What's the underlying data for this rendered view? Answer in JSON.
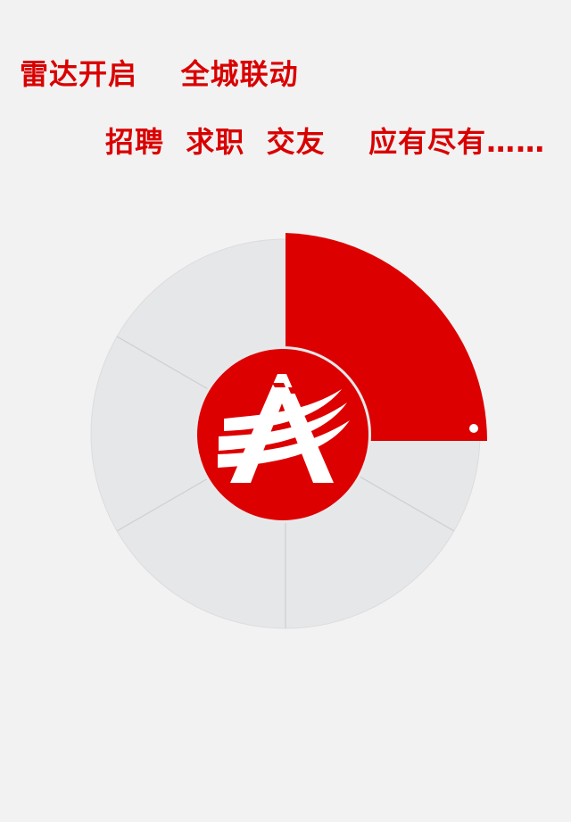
{
  "headline": {
    "line1": "雷达开启    全城联动",
    "line2": "招聘  求职  交友    应有尽有……"
  },
  "radar": {
    "sweep_color": "#dd0000",
    "disc_color": "#e6e7e9",
    "logo_bg_color": "#dd0000",
    "logo_icon": "swoosh-a-logo-icon"
  }
}
